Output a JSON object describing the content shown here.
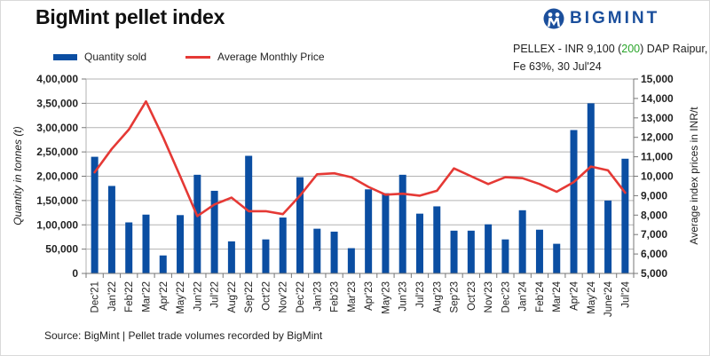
{
  "title": "BigMint pellet index",
  "logo": {
    "icon": "bigmint-logo-icon",
    "text": "BIGMINT"
  },
  "pellex": {
    "prefix": "PELLEX - INR 9,100 (",
    "change": "200",
    "suffix": ") DAP Raipur,",
    "line2": "Fe 63%, 30 Jul'24",
    "change_color": "#2aa52a"
  },
  "legend": {
    "bar_label": "Quantity sold",
    "line_label": "Average Monthly Price"
  },
  "source": "Source: BigMint | Pellet trade volumes recorded by BigMint",
  "colors": {
    "bar": "#0b4ea2",
    "line": "#e53935",
    "grid": "#b3b3b3"
  },
  "chart_data": {
    "type": "bar",
    "title": "BigMint pellet index",
    "categories": [
      "Dec'21",
      "Jan'22",
      "Feb'22",
      "Mar'22",
      "Apr'22",
      "May'22",
      "Jun'22",
      "Jul'22",
      "Aug'22",
      "Sep'22",
      "Oct'22",
      "Nov'22",
      "Dec'22",
      "Jan'23",
      "Feb'23",
      "Mar'23",
      "Apr'23",
      "May'23",
      "Jun'23",
      "Jul'23",
      "Aug'23",
      "Sep'23",
      "Oct'23",
      "Nov'23",
      "Dec'23",
      "Jan'24",
      "Feb'24",
      "Mar'24",
      "Apr'24",
      "May'24",
      "June'24",
      "Jul'24"
    ],
    "series": [
      {
        "name": "Quantity sold",
        "type": "bar",
        "axis": "left",
        "values": [
          240000,
          180000,
          105000,
          121000,
          37000,
          120000,
          203000,
          170000,
          66000,
          242000,
          70000,
          115000,
          198000,
          92000,
          86000,
          52000,
          173000,
          165000,
          203000,
          123000,
          138000,
          88000,
          88000,
          101000,
          70000,
          130000,
          90000,
          61000,
          295000,
          350000,
          150000,
          236000
        ]
      },
      {
        "name": "Average Monthly Price",
        "type": "line",
        "axis": "right",
        "values": [
          10200,
          11400,
          12400,
          13850,
          12000,
          10000,
          7950,
          8550,
          8900,
          8200,
          8200,
          8050,
          9000,
          10100,
          10150,
          9950,
          9450,
          9050,
          9100,
          9000,
          9250,
          10400,
          10000,
          9600,
          9950,
          9900,
          9600,
          9200,
          9700,
          10500,
          10300,
          9150
        ]
      }
    ],
    "xlabel": "",
    "ylabel": "Quantity in tonnes (t)",
    "y2label": "Average index prices in INR/t",
    "ylim": [
      0,
      400000
    ],
    "y2lim": [
      5000,
      15000
    ],
    "yticks": [
      "0",
      "50,000",
      "1,00,000",
      "1,50,000",
      "2,00,000",
      "2,50,000",
      "3,00,000",
      "3,50,000",
      "4,00,000"
    ],
    "y2ticks": [
      "5,000",
      "6,000",
      "7,000",
      "8,000",
      "9,000",
      "10,000",
      "11,000",
      "12,000",
      "13,000",
      "14,000",
      "15,000"
    ],
    "grid": true,
    "legend_position": "top-left"
  }
}
